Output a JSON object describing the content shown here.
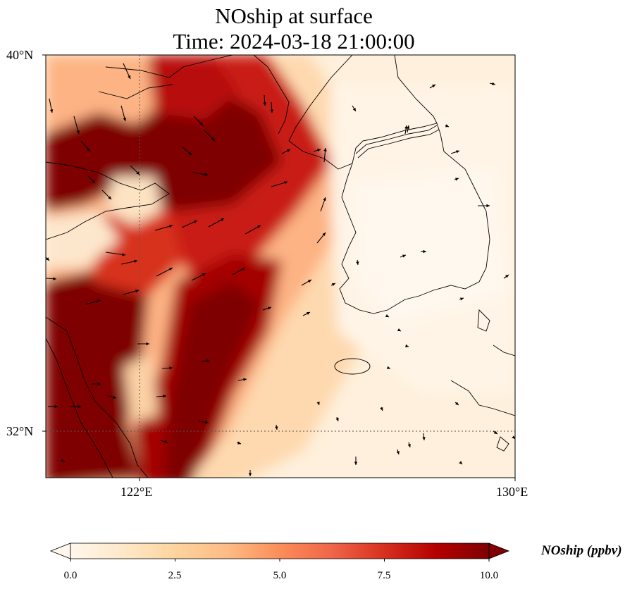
{
  "title": {
    "line1": "NOship at surface",
    "line2": "Time: 2024-03-18 21:00:00"
  },
  "axes": {
    "lat_labels": [
      "40°N",
      "32°N"
    ],
    "lon_labels": [
      "122°E",
      "130°E"
    ],
    "lon_range": [
      120,
      130
    ],
    "lat_range": [
      31,
      40
    ],
    "gridlines": "dotted, at 122°E and 32°N"
  },
  "colorbar": {
    "label": "NOship (ppbv)",
    "ticks": [
      "0.0",
      "2.5",
      "5.0",
      "7.5",
      "10.0"
    ],
    "range": [
      0,
      10
    ],
    "colormap": "OrRd",
    "extend": "both",
    "colors": [
      "#fff7ec",
      "#fee8c8",
      "#fdd49e",
      "#fdbb84",
      "#fc8d59",
      "#ef6548",
      "#d7301f",
      "#b30000",
      "#7f0000"
    ]
  },
  "map_features": {
    "coastlines": true,
    "wind_vectors": true,
    "high_concentration_band": "dark red shipping corridor from Yellow Sea northeast toward Liaodong, and along Chinese coast",
    "low_concentration_region": "Korean Peninsula"
  }
}
